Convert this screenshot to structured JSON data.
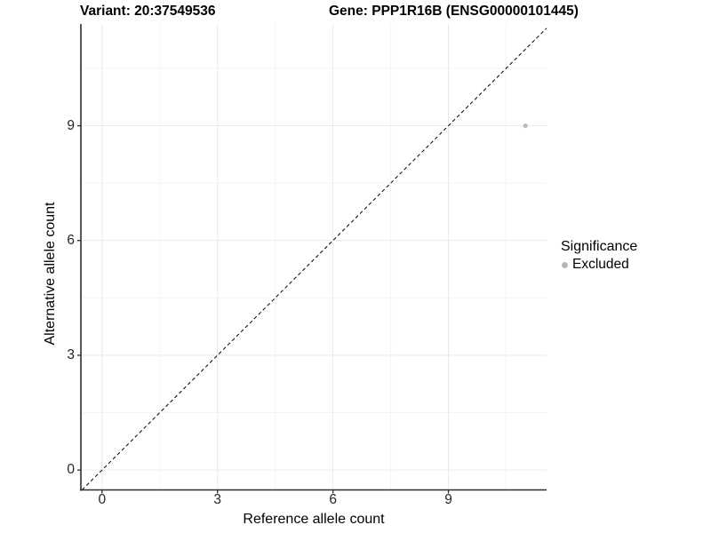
{
  "chart_data": {
    "type": "scatter",
    "title_left": "Variant: 20:37549536",
    "title_right": "Gene: PPP1R16B (ENSG00000101445)",
    "xlabel": "Reference allele count",
    "ylabel": "Alternative allele count",
    "x_ticks": [
      0,
      3,
      6,
      9
    ],
    "y_ticks": [
      0,
      3,
      6,
      9
    ],
    "x_minor_ticks": [
      1.5,
      4.5,
      7.5,
      10.5
    ],
    "y_minor_ticks": [
      1.5,
      4.5,
      7.5,
      10.5
    ],
    "xlim": [
      -0.55,
      11.55
    ],
    "ylim": [
      -0.52,
      11.66
    ],
    "points": [
      {
        "x": 11,
        "y": 9,
        "significance": "Excluded"
      }
    ],
    "reference_line": {
      "type": "identity",
      "style": "dashed",
      "dash": "4 3"
    },
    "legend": {
      "title": "Significance",
      "position": "right",
      "items": [
        {
          "label": "Excluded",
          "color": "#b6b6b6"
        }
      ]
    },
    "grid": true,
    "colors": {
      "background": "#ffffff",
      "grid_major": "#e9e9e9",
      "grid_minor": "#f4f4f4",
      "axis": "#2e2e2e",
      "tick": "#2e2e2e",
      "point": "#bcbcbc",
      "identity_line": "#000000",
      "text": "#000000"
    }
  }
}
